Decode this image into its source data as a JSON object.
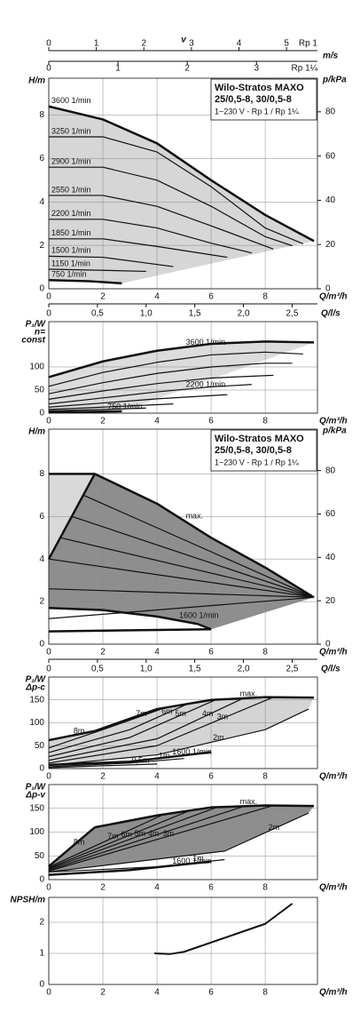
{
  "chart_data": [
    {
      "type": "line",
      "title": "Wilo-Stratos MAXO",
      "subtitle": "25/0,5-8, 30/0,5-8",
      "note": "1~230 V - Rp 1 / Rp 1¼",
      "v_axis": {
        "label": "v",
        "unit": "m/s",
        "scales": [
          {
            "label": "Rp 1",
            "xlim": [
              0,
              5.65
            ],
            "xticks": [
              0,
              1,
              2,
              3,
              4,
              5
            ]
          },
          {
            "label": "Rp 1¼",
            "xlim": [
              0,
              3.88
            ],
            "xticks": [
              0,
              1,
              2,
              3
            ]
          }
        ]
      },
      "ylabel": [
        "H/m"
      ],
      "y2label": "p/kPa",
      "xlabel": "Q/m³/h",
      "xlim": [
        0,
        9.93
      ],
      "xticks": [
        0,
        2,
        4,
        6,
        8
      ],
      "ylim": [
        0,
        9.7
      ],
      "yticks": [
        0,
        2,
        4,
        6,
        8
      ],
      "y2lim": [
        0,
        95.2
      ],
      "y2ticks": [
        0,
        20,
        40,
        60,
        80
      ],
      "grid": true,
      "fill_colors": [
        "#d6d6d6"
      ],
      "series": [
        {
          "name": "3600 1/min",
          "color": "#111111",
          "linewidth": 2.5,
          "x": [
            0,
            2,
            4,
            6,
            8,
            9.8
          ],
          "values": [
            8.4,
            7.8,
            6.7,
            5.0,
            3.4,
            2.2
          ]
        },
        {
          "name": "3250 1/min",
          "color": "#111111",
          "linewidth": 1.2,
          "x": [
            0,
            2,
            4,
            6,
            8,
            9.4
          ],
          "values": [
            7.0,
            7.0,
            6.3,
            4.7,
            2.8,
            2.07
          ]
        },
        {
          "name": "2900 1/min",
          "color": "#111111",
          "linewidth": 1.2,
          "x": [
            0,
            2,
            4,
            6,
            8,
            9.0
          ],
          "values": [
            5.6,
            5.6,
            5.0,
            3.8,
            2.4,
            1.98
          ]
        },
        {
          "name": "2550 1/min",
          "color": "#111111",
          "linewidth": 1.2,
          "x": [
            0,
            2,
            4,
            6,
            8.3
          ],
          "values": [
            4.3,
            4.3,
            3.8,
            2.9,
            1.83
          ]
        },
        {
          "name": "2200 1/min",
          "color": "#111111",
          "linewidth": 1.2,
          "x": [
            0,
            2,
            4,
            6,
            7.5
          ],
          "values": [
            3.2,
            3.2,
            2.8,
            2.1,
            1.65
          ]
        },
        {
          "name": "1850 1/min",
          "color": "#111111",
          "linewidth": 1.2,
          "x": [
            0,
            2,
            4,
            6.6
          ],
          "values": [
            2.3,
            2.3,
            1.95,
            1.45
          ]
        },
        {
          "name": "1500 1/min",
          "color": "#111111",
          "linewidth": 1.2,
          "x": [
            0,
            2,
            4.6
          ],
          "values": [
            1.5,
            1.45,
            1.02
          ]
        },
        {
          "name": "1150 1/min",
          "color": "#111111",
          "linewidth": 1.2,
          "x": [
            0,
            2,
            3.6
          ],
          "values": [
            0.9,
            0.85,
            0.8
          ]
        },
        {
          "name": "750 1/min",
          "color": "#111111",
          "linewidth": 2.5,
          "x": [
            0,
            1.5,
            2.7
          ],
          "values": [
            0.4,
            0.35,
            0.25
          ]
        }
      ]
    },
    {
      "type": "line",
      "ylabel": [
        "P₁/W",
        "n=",
        "const"
      ],
      "xlabel": "Q/m³/h",
      "top_axis": {
        "label": "Q/l/s",
        "xlim": [
          0,
          2.76
        ],
        "xticks": [
          0,
          {
            "value": 0.5,
            "label": "0,5"
          },
          {
            "value": 1,
            "label": "1,0"
          },
          {
            "value": 1.5,
            "label": "1,5"
          },
          {
            "value": 2,
            "label": "2,0"
          },
          {
            "value": 2.5,
            "label": "2,5"
          }
        ]
      },
      "xlim": [
        0,
        9.93
      ],
      "xticks": [
        0,
        2,
        4,
        6,
        8
      ],
      "ylim": [
        0,
        198
      ],
      "yticks": [
        0,
        50,
        100
      ],
      "grid": true,
      "fill_colors": [
        "#dcdcdc"
      ],
      "series": [
        {
          "name": "3600 1/min",
          "color": "#111111",
          "linewidth": 2.5,
          "x": [
            0,
            2,
            4,
            6,
            8,
            9.8
          ],
          "values": [
            78,
            112,
            135,
            150,
            155,
            153
          ]
        },
        {
          "color": "#111111",
          "linewidth": 1.2,
          "x": [
            0,
            2,
            4,
            6,
            8,
            9.4
          ],
          "values": [
            58,
            88,
            110,
            126,
            132,
            128
          ]
        },
        {
          "color": "#111111",
          "linewidth": 1.2,
          "x": [
            0,
            2,
            4,
            6,
            8,
            9.0
          ],
          "values": [
            42,
            66,
            86,
            100,
            108,
            108
          ]
        },
        {
          "color": "#111111",
          "linewidth": 1.2,
          "x": [
            0,
            2,
            4,
            6,
            8.3
          ],
          "values": [
            30,
            48,
            64,
            76,
            82
          ]
        },
        {
          "name": "2200 1/min",
          "color": "#111111",
          "linewidth": 1.2,
          "x": [
            0,
            2,
            4,
            6,
            7.5
          ],
          "values": [
            20,
            33,
            46,
            57,
            62
          ]
        },
        {
          "color": "#111111",
          "linewidth": 1.2,
          "x": [
            0,
            2,
            4,
            6.6
          ],
          "values": [
            13,
            22,
            31,
            40
          ]
        },
        {
          "color": "#111111",
          "linewidth": 1.2,
          "x": [
            0,
            2,
            4.6
          ],
          "values": [
            8,
            13,
            20
          ]
        },
        {
          "color": "#111111",
          "linewidth": 1.2,
          "x": [
            0,
            2,
            3.6
          ],
          "values": [
            5,
            8,
            11
          ]
        },
        {
          "name": "750 1/min",
          "color": "#111111",
          "linewidth": 2.5,
          "x": [
            0,
            1.5,
            2.7
          ],
          "values": [
            2,
            3,
            4
          ]
        }
      ]
    },
    {
      "type": "line",
      "title": "Wilo-Stratos MAXO",
      "subtitle": "25/0,5-8, 30/0,5-8",
      "note": "1~230 V - Rp 1 / Rp 1¼",
      "ylabel": [
        "H/m"
      ],
      "y2label": "p/kPa",
      "xlabel": "Q/m³/h",
      "xlim": [
        0,
        9.93
      ],
      "xticks": [
        0,
        2,
        4,
        6,
        8
      ],
      "ylim": [
        0,
        10.1
      ],
      "yticks": [
        0,
        2,
        4,
        6,
        8
      ],
      "y2lim": [
        0,
        99.1
      ],
      "y2ticks": [
        0,
        20,
        40,
        60,
        80
      ],
      "grid": true,
      "fill_colors": [
        "#d9d9d9",
        "#8e8e8e"
      ],
      "series": [
        {
          "name": "max.",
          "color": "#111111",
          "linewidth": 2.5,
          "x": [
            0,
            1.7,
            4,
            6,
            8,
            9.8
          ],
          "values": [
            8,
            8,
            6.6,
            5.0,
            3.6,
            2.2
          ]
        },
        {
          "color": "#111111",
          "linewidth": 2.5,
          "x": [
            0,
            1.7
          ],
          "values": [
            4,
            8
          ]
        },
        {
          "name": "1600 1/min",
          "color": "#111111",
          "linewidth": 2.5,
          "x": [
            0,
            2,
            4,
            5.5,
            6
          ],
          "values": [
            1.7,
            1.6,
            1.3,
            0.95,
            0.7
          ]
        },
        {
          "color": "#111111",
          "linewidth": 1.2,
          "x": [
            0,
            9.8
          ],
          "values": [
            1.2,
            2.2
          ]
        },
        {
          "color": "#111111",
          "linewidth": 1.2,
          "x": [
            0,
            9.8
          ],
          "values": [
            2.6,
            2.2
          ]
        },
        {
          "color": "#111111",
          "linewidth": 1.2,
          "x": [
            0,
            9.8
          ],
          "values": [
            4,
            2.2
          ]
        },
        {
          "color": "#111111",
          "linewidth": 1.2,
          "x": [
            0.43,
            9.8
          ],
          "values": [
            5,
            2.2
          ]
        },
        {
          "color": "#111111",
          "linewidth": 1.2,
          "x": [
            0.85,
            9.8
          ],
          "values": [
            6,
            2.2
          ]
        },
        {
          "color": "#111111",
          "linewidth": 1.2,
          "x": [
            1.28,
            9.8
          ],
          "values": [
            7,
            2.2
          ]
        },
        {
          "color": "#111111",
          "linewidth": 2.5,
          "x": [
            0,
            6
          ],
          "values": [
            0.6,
            0.7
          ]
        }
      ]
    },
    {
      "type": "line",
      "ylabel": [
        "P₁/W",
        "Δp-c"
      ],
      "xlabel": "Q/m³/h",
      "top_axis": {
        "label": "Q/l/s",
        "xlim": [
          0,
          2.76
        ],
        "xticks": [
          0,
          {
            "value": 0.5,
            "label": "0,5"
          },
          {
            "value": 1,
            "label": "1,0"
          },
          {
            "value": 1.5,
            "label": "1,5"
          },
          {
            "value": 2,
            "label": "2,0"
          },
          {
            "value": 2.5,
            "label": "2,5"
          }
        ]
      },
      "xlim": [
        0,
        9.93
      ],
      "xticks": [
        0,
        2,
        4,
        6,
        8
      ],
      "ylim": [
        0,
        200
      ],
      "yticks": [
        0,
        50,
        100,
        150
      ],
      "grid": true,
      "fill_colors": [
        "#d4d4d4"
      ],
      "series": [
        {
          "name": "max.",
          "color": "#111111",
          "linewidth": 2.5,
          "x": [
            1.7,
            4,
            6,
            8,
            9.8
          ],
          "values": [
            82,
            130,
            150,
            156,
            155
          ]
        },
        {
          "name": "8m",
          "color": "#111111",
          "linewidth": 2.5,
          "x": [
            0,
            1.7
          ],
          "values": [
            62,
            82
          ]
        },
        {
          "name": "7m",
          "color": "#111111",
          "linewidth": 1.2,
          "x": [
            0,
            2,
            4.3
          ],
          "values": [
            45,
            85,
            133
          ]
        },
        {
          "name": "6m",
          "color": "#111111",
          "linewidth": 1.2,
          "x": [
            0,
            3,
            5.2
          ],
          "values": [
            35,
            85,
            143
          ]
        },
        {
          "name": "5m",
          "color": "#111111",
          "linewidth": 1.2,
          "x": [
            0,
            3,
            6.2
          ],
          "values": [
            26,
            68,
            151
          ]
        },
        {
          "name": "4m",
          "color": "#111111",
          "linewidth": 1.2,
          "x": [
            0,
            4,
            7.2
          ],
          "values": [
            18,
            65,
            154
          ]
        },
        {
          "name": "3m",
          "color": "#111111",
          "linewidth": 1.2,
          "x": [
            0,
            4,
            8.3
          ],
          "values": [
            12,
            50,
            156
          ]
        },
        {
          "name": "2m",
          "color": "#111111",
          "linewidth": 1.2,
          "x": [
            0,
            4,
            8,
            9.6
          ],
          "values": [
            7,
            30,
            85,
            130
          ]
        },
        {
          "name": "1m",
          "color": "#111111",
          "linewidth": 1.2,
          "x": [
            0,
            3,
            5
          ],
          "values": [
            4,
            12,
            22
          ]
        },
        {
          "name": "0,5m",
          "color": "#111111",
          "linewidth": 1.2,
          "x": [
            0,
            2,
            4
          ],
          "values": [
            2,
            6,
            10
          ]
        },
        {
          "name": "1600 1/min",
          "color": "#111111",
          "linewidth": 2.5,
          "x": [
            0,
            3,
            6
          ],
          "values": [
            8,
            15,
            36
          ]
        }
      ]
    },
    {
      "type": "line",
      "ylabel": [
        "P₁/W",
        "Δp-v"
      ],
      "xlabel": "Q/m³/h",
      "xlim": [
        0,
        9.93
      ],
      "xticks": [
        0,
        2,
        4,
        6,
        8
      ],
      "ylim": [
        0,
        200
      ],
      "yticks": [
        0,
        50,
        100,
        150
      ],
      "grid": true,
      "fill_colors": [
        "#8e8e8e"
      ],
      "series": [
        {
          "name": "max.",
          "color": "#111111",
          "linewidth": 2.5,
          "x": [
            1.7,
            4,
            6,
            8,
            9.8
          ],
          "values": [
            110,
            135,
            152,
            156,
            155
          ]
        },
        {
          "name": "8m",
          "color": "#111111",
          "linewidth": 2.5,
          "x": [
            0,
            1.7
          ],
          "values": [
            28,
            110
          ]
        },
        {
          "name": "7m",
          "color": "#111111",
          "linewidth": 1.2,
          "x": [
            0,
            4.2
          ],
          "values": [
            26,
            136
          ]
        },
        {
          "name": "6m",
          "color": "#111111",
          "linewidth": 1.2,
          "x": [
            0,
            5.2
          ],
          "values": [
            24,
            145
          ]
        },
        {
          "name": "5m",
          "color": "#111111",
          "linewidth": 1.2,
          "x": [
            0,
            6.2
          ],
          "values": [
            22,
            152
          ]
        },
        {
          "name": "4m",
          "color": "#111111",
          "linewidth": 1.2,
          "x": [
            0,
            7.2
          ],
          "values": [
            20,
            154
          ]
        },
        {
          "name": "3m",
          "color": "#111111",
          "linewidth": 1.2,
          "x": [
            0,
            8.3
          ],
          "values": [
            18,
            156
          ]
        },
        {
          "name": "2m",
          "color": "#111111",
          "linewidth": 1.2,
          "x": [
            0,
            6.5,
            9.6
          ],
          "values": [
            16,
            60,
            140
          ]
        },
        {
          "name": "1m",
          "color": "#111111",
          "linewidth": 1.2,
          "x": [
            0,
            4,
            6.5
          ],
          "values": [
            16,
            27,
            42
          ]
        },
        {
          "name": "1600 1/min",
          "color": "#111111",
          "linewidth": 2.5,
          "x": [
            0,
            3,
            6
          ],
          "values": [
            10,
            20,
            38
          ]
        }
      ]
    },
    {
      "type": "line",
      "ylabel": [
        "NPSH/m"
      ],
      "xlabel": "Q/m³/h",
      "xlim": [
        0,
        9.93
      ],
      "xticks": [
        0,
        2,
        4,
        6,
        8
      ],
      "ylim": [
        0,
        2.8
      ],
      "yticks": [
        0,
        1,
        2
      ],
      "grid": true,
      "series": [
        {
          "color": "#111111",
          "linewidth": 2,
          "x": [
            3.9,
            4.5,
            5,
            6,
            7,
            8,
            9
          ],
          "values": [
            1.0,
            0.98,
            1.05,
            1.35,
            1.65,
            1.95,
            2.6
          ]
        }
      ]
    }
  ]
}
